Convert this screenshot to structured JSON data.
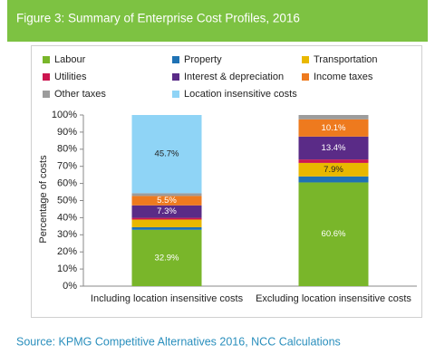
{
  "chart_data": {
    "type": "stacked_bar",
    "title": "Figure 3: Summary of Enterprise Cost Profiles, 2016",
    "source": "Source: KPMG Competitive Alternatives 2016, NCC Calculations",
    "y_label": "Percentage of costs",
    "categories": [
      "Including location insensitive costs",
      "Excluding location insensitive costs"
    ],
    "series": [
      {
        "name": "Labour",
        "color": "#79b62a",
        "values": [
          32.9,
          60.6
        ],
        "value_labels": [
          "32.9%",
          "60.6%"
        ]
      },
      {
        "name": "Property",
        "color": "#1f72b4",
        "values": [
          1.5,
          3.5
        ],
        "value_labels": [
          null,
          null
        ]
      },
      {
        "name": "Transportation",
        "color": "#e9b800",
        "values": [
          4.5,
          7.9
        ],
        "value_labels": [
          null,
          "7.9%"
        ]
      },
      {
        "name": "Utilities",
        "color": "#cc1650",
        "values": [
          1.0,
          2.0
        ],
        "value_labels": [
          null,
          null
        ]
      },
      {
        "name": "Interest & depreciation",
        "color": "#5a2b87",
        "values": [
          7.3,
          13.4
        ],
        "value_labels": [
          "7.3%",
          "13.4%"
        ]
      },
      {
        "name": "Income taxes",
        "color": "#ee7a1e",
        "values": [
          5.5,
          10.1
        ],
        "value_labels": [
          "5.5%",
          "10.1%"
        ]
      },
      {
        "name": "Other taxes",
        "color": "#9c9c9c",
        "values": [
          1.6,
          2.5
        ],
        "value_labels": [
          null,
          null
        ]
      },
      {
        "name": "Location insensitive costs",
        "color": "#8fd4f6",
        "values": [
          45.7,
          0
        ],
        "value_labels": [
          "45.7%",
          null
        ]
      }
    ],
    "ylim": [
      0,
      100
    ],
    "yticks": [
      {
        "value": 0,
        "label": "0%"
      },
      {
        "value": 10,
        "label": "10%"
      },
      {
        "value": 20,
        "label": "20%"
      },
      {
        "value": 30,
        "label": "30%"
      },
      {
        "value": 40,
        "label": "40%"
      },
      {
        "value": 50,
        "label": "50%"
      },
      {
        "value": 60,
        "label": "60%"
      },
      {
        "value": 70,
        "label": "70%"
      },
      {
        "value": 80,
        "label": "80%"
      },
      {
        "value": 90,
        "label": "90%"
      },
      {
        "value": 100,
        "label": "100%"
      }
    ]
  }
}
